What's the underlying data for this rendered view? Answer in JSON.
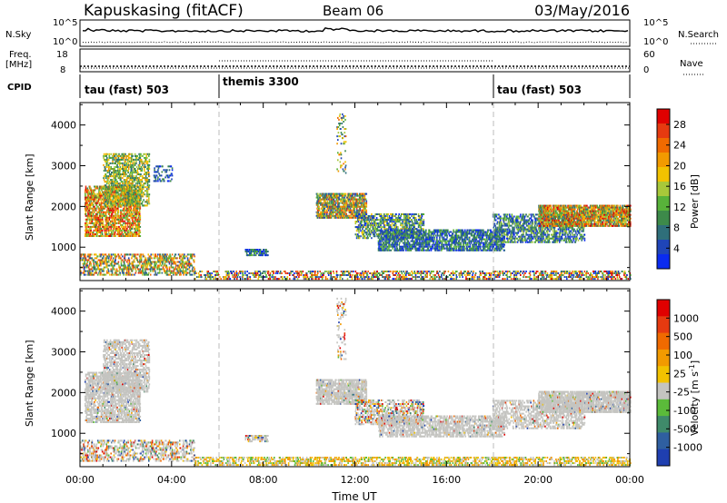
{
  "header": {
    "station": "Kapuskasing (fitACF)",
    "beam": "Beam 06",
    "date": "03/May/2016"
  },
  "colors": {
    "grid_dash": "#bbbbbb",
    "ground_scatter": "#c4c4c0"
  },
  "panels": {
    "nsky": {
      "left_label": "N.Sky",
      "left_ticks": [
        "10^5",
        "10^0"
      ],
      "right_label": "N.Search",
      "right_ticks": [
        "10^5",
        "10^0"
      ]
    },
    "freq": {
      "left_label_1": "Freq.",
      "left_label_2": "[MHz]",
      "left_ticks": [
        "18",
        "8"
      ],
      "right_label": "Nave",
      "right_ticks": [
        "60",
        "0"
      ]
    },
    "cpid": {
      "label": "CPID",
      "modes": [
        {
          "name": "tau (fast) 503",
          "start": 0
        },
        {
          "name": "themis 3300",
          "start": 6
        },
        {
          "name": "tau (fast) 503",
          "start": 18
        }
      ]
    }
  },
  "chart_data": [
    {
      "type": "heatmap",
      "name": "power",
      "ylabel": "Slant Range [km]",
      "ylim": [
        180,
        4550
      ],
      "yticks": [
        1000,
        2000,
        3000,
        4000
      ],
      "xlim": [
        0,
        24
      ],
      "colorbar": {
        "label": "Power [dB]",
        "ticks": [
          "4",
          "8",
          "12",
          "16",
          "20",
          "24",
          "28"
        ],
        "colors": [
          "#0a2bf0",
          "#1f45b8",
          "#2f6f7a",
          "#3d8a4a",
          "#58b23a",
          "#a8c83a",
          "#f2c200",
          "#f29a00",
          "#f06a00",
          "#e63a10",
          "#e00000"
        ]
      },
      "echo_regions": [
        {
          "t": [
            0.2,
            2.6
          ],
          "r": [
            1250,
            2500
          ],
          "lvl": [
            3,
            10
          ],
          "d": 0.5
        },
        {
          "t": [
            1.0,
            3.0
          ],
          "r": [
            2000,
            3300
          ],
          "lvl": [
            2,
            7
          ],
          "d": 0.4
        },
        {
          "t": [
            3.2,
            4.0
          ],
          "r": [
            2600,
            3000
          ],
          "lvl": [
            0,
            3
          ],
          "d": 0.25
        },
        {
          "t": [
            0.0,
            5.0
          ],
          "r": [
            300,
            800
          ],
          "lvl": [
            1,
            9
          ],
          "d": 0.35
        },
        {
          "t": [
            7.2,
            8.2
          ],
          "r": [
            780,
            950
          ],
          "lvl": [
            0,
            4
          ],
          "d": 0.6
        },
        {
          "t": [
            5.0,
            24.0
          ],
          "r": [
            200,
            420
          ],
          "lvl": [
            0,
            10
          ],
          "d": 0.3
        },
        {
          "t": [
            10.3,
            12.5
          ],
          "r": [
            1700,
            2300
          ],
          "lvl": [
            1,
            9
          ],
          "d": 0.6
        },
        {
          "t": [
            12.0,
            15.0
          ],
          "r": [
            1200,
            1800
          ],
          "lvl": [
            0,
            6
          ],
          "d": 0.4
        },
        {
          "t": [
            13.0,
            18.5
          ],
          "r": [
            900,
            1400
          ],
          "lvl": [
            0,
            4
          ],
          "d": 0.5
        },
        {
          "t": [
            18.0,
            22.0
          ],
          "r": [
            1100,
            1800
          ],
          "lvl": [
            0,
            5
          ],
          "d": 0.4
        },
        {
          "t": [
            20.0,
            24.0
          ],
          "r": [
            1500,
            2000
          ],
          "lvl": [
            2,
            10
          ],
          "d": 0.65
        },
        {
          "t": [
            11.2,
            11.6
          ],
          "r": [
            2800,
            4300
          ],
          "lvl": [
            1,
            8
          ],
          "d": 0.12
        }
      ]
    },
    {
      "type": "heatmap",
      "name": "velocity",
      "ylabel": "Slant Range [km]",
      "xlabel": "Time UT",
      "ylim": [
        180,
        4550
      ],
      "yticks": [
        1000,
        2000,
        3000,
        4000
      ],
      "xlim": [
        0,
        24
      ],
      "xticks": [
        "00:00",
        "04:00",
        "08:00",
        "12:00",
        "16:00",
        "20:00",
        "00:00"
      ],
      "colorbar": {
        "label": "Velocity [m s^-1]",
        "ticks": [
          "1000",
          "500",
          "100",
          "25",
          "-25",
          "-100",
          "-500",
          "-1000"
        ],
        "colors": [
          "#1f3fb0",
          "#2f5fa0",
          "#3f8a6a",
          "#5bbb3a",
          "#c4c4c0",
          "#f2c200",
          "#f29a00",
          "#f06a00",
          "#e63a10",
          "#e00000"
        ]
      },
      "echo_regions": [
        {
          "t": [
            0.2,
            2.6
          ],
          "r": [
            1250,
            2500
          ],
          "kind": "ground",
          "d": 0.5
        },
        {
          "t": [
            1.0,
            3.0
          ],
          "r": [
            2000,
            3300
          ],
          "kind": "ground",
          "d": 0.4
        },
        {
          "t": [
            0.0,
            5.0
          ],
          "r": [
            300,
            800
          ],
          "kind": "mixed",
          "d": 0.3
        },
        {
          "t": [
            7.2,
            8.2
          ],
          "r": [
            780,
            950
          ],
          "kind": "mixed",
          "d": 0.5
        },
        {
          "t": [
            5.0,
            24.0
          ],
          "r": [
            200,
            420
          ],
          "kind": "low",
          "d": 0.35
        },
        {
          "t": [
            10.3,
            12.5
          ],
          "r": [
            1700,
            2300
          ],
          "kind": "ground",
          "d": 0.6
        },
        {
          "t": [
            12.0,
            15.0
          ],
          "r": [
            1200,
            1800
          ],
          "kind": "mixed",
          "d": 0.35
        },
        {
          "t": [
            13.0,
            18.5
          ],
          "r": [
            900,
            1400
          ],
          "kind": "ground",
          "d": 0.45
        },
        {
          "t": [
            18.0,
            22.0
          ],
          "r": [
            1100,
            1800
          ],
          "kind": "ground",
          "d": 0.35
        },
        {
          "t": [
            20.0,
            24.0
          ],
          "r": [
            1500,
            2000
          ],
          "kind": "ground",
          "d": 0.65
        },
        {
          "t": [
            11.2,
            11.6
          ],
          "r": [
            2800,
            4300
          ],
          "kind": "mixed",
          "d": 0.12
        }
      ]
    }
  ]
}
